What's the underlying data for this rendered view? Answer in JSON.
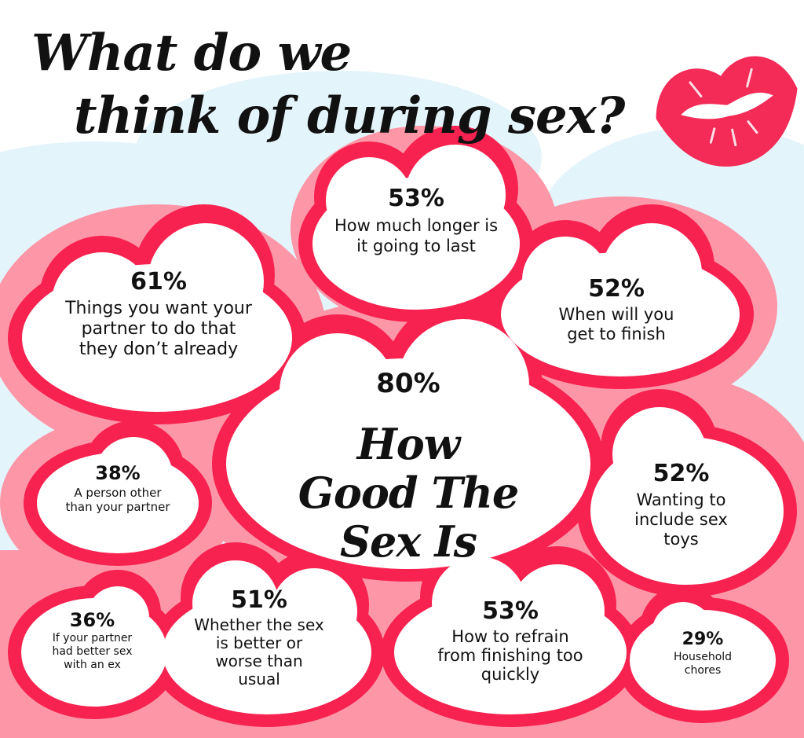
{
  "title_line1": "What do we",
  "title_line2": "think of during sex?",
  "colors": {
    "outer_glow": "#fd97a8",
    "cloud_border": "#f7224f",
    "sky": "#e3f4fb",
    "text": "#111111",
    "lips": "#f42a57"
  },
  "icons": {
    "decoration": "lips-icon"
  },
  "bubbles": [
    {
      "percent": "53%",
      "label": "How much longer is it going to last"
    },
    {
      "percent": "61%",
      "label": "Things you want your partner to do that they don’t already"
    },
    {
      "percent": "52%",
      "label": "When will you get to finish"
    },
    {
      "percent": "80%",
      "label": "How Good The Sex Is"
    },
    {
      "percent": "38%",
      "label": "A person other than your partner"
    },
    {
      "percent": "52%",
      "label": "Wanting to include sex toys"
    },
    {
      "percent": "36%",
      "label": "If your partner had better sex with an ex"
    },
    {
      "percent": "51%",
      "label": "Whether the sex is better or worse than usual"
    },
    {
      "percent": "53%",
      "label": "How to refrain from finishing too quickly"
    },
    {
      "percent": "29%",
      "label": "Household chores"
    }
  ]
}
